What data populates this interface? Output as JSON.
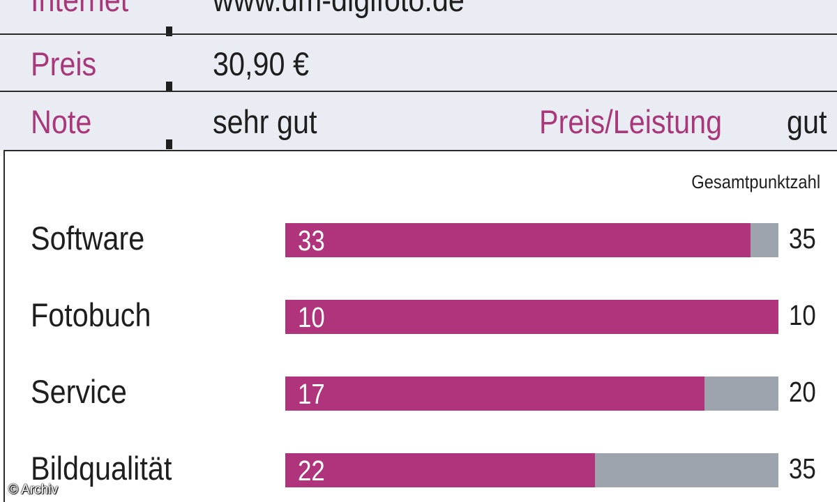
{
  "info": {
    "rows": [
      {
        "key": "Internet",
        "value": "www.dm-digifoto.de"
      },
      {
        "key": "Preis",
        "value": "30,90 €"
      },
      {
        "key": "Note",
        "value": "sehr gut",
        "key2": "Preis/Leistung",
        "value2": "gut"
      }
    ]
  },
  "colors": {
    "accent": "#b0347c",
    "track": "#9ea4ad",
    "label_accent": "#a8387a",
    "info_bg": "#e9ecf3"
  },
  "chart_data": {
    "type": "bar",
    "orientation": "horizontal",
    "column_header": "Gesamtpunktzahl",
    "categories": [
      "Software",
      "Fotobuch",
      "Service",
      "Bildqualität"
    ],
    "series": [
      {
        "values": [
          33,
          10,
          17,
          22
        ]
      }
    ],
    "max_values": [
      35,
      10,
      20,
      35
    ],
    "legend": "none",
    "grid": false
  },
  "credit": "© Archiv"
}
